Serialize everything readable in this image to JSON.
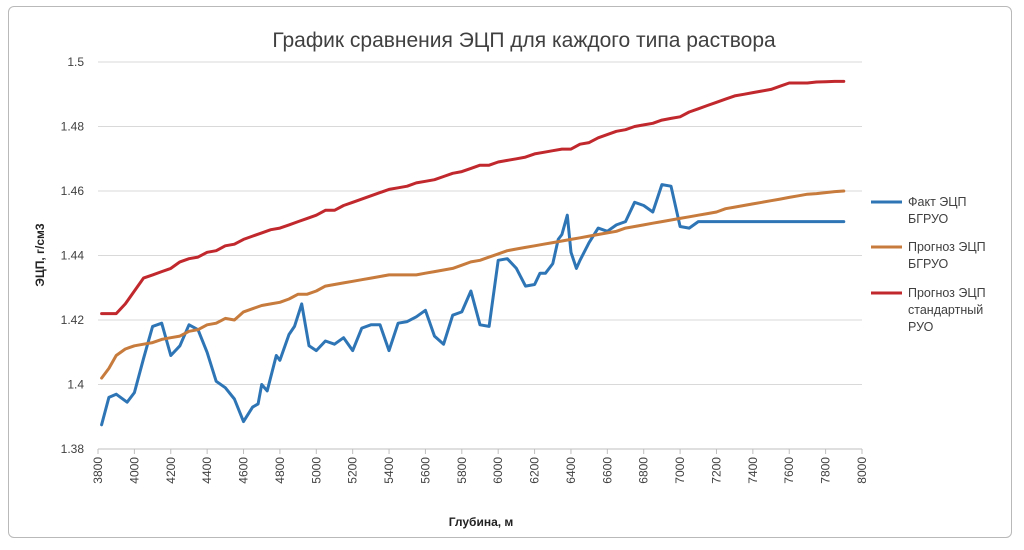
{
  "chart_data": {
    "type": "line",
    "title": "График сравнения ЭЦП для каждого типа раствора",
    "xlabel": "Глубина, м",
    "ylabel": "ЭЦП, г/см3",
    "xlim": [
      3800,
      8000
    ],
    "ylim": [
      1.38,
      1.5
    ],
    "x_ticks": [
      "3800",
      "4000",
      "4200",
      "4400",
      "4600",
      "4800",
      "5000",
      "5200",
      "5400",
      "5600",
      "5800",
      "6000",
      "6200",
      "6400",
      "6600",
      "6800",
      "7000",
      "7200",
      "7400",
      "7600",
      "7800",
      "8000"
    ],
    "y_ticks": [
      "1.38",
      "1.4",
      "1.42",
      "1.44",
      "1.46",
      "1.48",
      "1.5"
    ],
    "grid": "horizontal",
    "legend_position": "right",
    "series": [
      {
        "name": "Факт ЭЦП БГРУО",
        "name_lines": [
          "Факт ЭЦП",
          "БГРУО"
        ],
        "color": "#2e75b6",
        "x": [
          3820,
          3860,
          3900,
          3960,
          4000,
          4050,
          4100,
          4150,
          4200,
          4250,
          4300,
          4350,
          4400,
          4450,
          4500,
          4550,
          4600,
          4650,
          4680,
          4700,
          4730,
          4780,
          4800,
          4850,
          4880,
          4920,
          4960,
          5000,
          5050,
          5100,
          5150,
          5200,
          5250,
          5300,
          5350,
          5400,
          5450,
          5500,
          5550,
          5600,
          5650,
          5700,
          5750,
          5800,
          5850,
          5900,
          5950,
          6000,
          6050,
          6100,
          6150,
          6200,
          6230,
          6260,
          6300,
          6330,
          6350,
          6380,
          6400,
          6430,
          6450,
          6500,
          6550,
          6600,
          6650,
          6700,
          6750,
          6800,
          6850,
          6900,
          6950,
          7000,
          7050,
          7100,
          7150,
          7200,
          7250,
          7300,
          7350,
          7400,
          7450,
          7500,
          7550,
          7600,
          7650,
          7700,
          7750,
          7800,
          7850,
          7900
        ],
        "values": [
          1.3875,
          1.396,
          1.397,
          1.3945,
          1.3975,
          1.408,
          1.418,
          1.419,
          1.409,
          1.412,
          1.4185,
          1.417,
          1.41,
          1.401,
          1.399,
          1.3955,
          1.3885,
          1.393,
          1.394,
          1.4,
          1.398,
          1.409,
          1.4075,
          1.4155,
          1.418,
          1.425,
          1.412,
          1.4105,
          1.4135,
          1.4125,
          1.4145,
          1.4105,
          1.4175,
          1.4185,
          1.4185,
          1.4105,
          1.419,
          1.4195,
          1.421,
          1.423,
          1.415,
          1.4125,
          1.4215,
          1.4225,
          1.429,
          1.4185,
          1.418,
          1.4385,
          1.439,
          1.436,
          1.4305,
          1.431,
          1.4345,
          1.4345,
          1.4375,
          1.445,
          1.4465,
          1.4525,
          1.441,
          1.436,
          1.4385,
          1.444,
          1.4485,
          1.4475,
          1.4495,
          1.4505,
          1.4565,
          1.4555,
          1.4535,
          1.462,
          1.4615,
          1.449,
          1.4485,
          1.4505,
          1.4505,
          1.4505,
          1.4505,
          1.4505,
          1.4505,
          1.4505,
          1.4505,
          1.4505,
          1.4505,
          1.4505,
          1.4505,
          1.4505,
          1.4505,
          1.4505,
          1.4505,
          1.4505
        ]
      },
      {
        "name": "Прогноз ЭЦП БГРУО",
        "name_lines": [
          "Прогноз ЭЦП",
          "БГРУО"
        ],
        "color": "#c77b3c",
        "x": [
          3820,
          3860,
          3900,
          3950,
          4000,
          4050,
          4100,
          4150,
          4200,
          4250,
          4300,
          4350,
          4400,
          4450,
          4500,
          4550,
          4600,
          4650,
          4700,
          4750,
          4800,
          4850,
          4900,
          4950,
          5000,
          5050,
          5100,
          5150,
          5200,
          5250,
          5300,
          5350,
          5400,
          5450,
          5500,
          5550,
          5600,
          5650,
          5700,
          5750,
          5800,
          5850,
          5900,
          5950,
          6000,
          6050,
          6100,
          6150,
          6200,
          6250,
          6300,
          6350,
          6400,
          6450,
          6500,
          6550,
          6600,
          6650,
          6700,
          6750,
          6800,
          6850,
          6900,
          6950,
          7000,
          7050,
          7100,
          7150,
          7200,
          7250,
          7300,
          7350,
          7400,
          7450,
          7500,
          7550,
          7600,
          7650,
          7700,
          7750,
          7800,
          7850,
          7900
        ],
        "values": [
          1.402,
          1.405,
          1.409,
          1.411,
          1.412,
          1.4125,
          1.413,
          1.414,
          1.4145,
          1.415,
          1.4165,
          1.417,
          1.4185,
          1.419,
          1.4205,
          1.42,
          1.4225,
          1.4235,
          1.4245,
          1.425,
          1.4255,
          1.4265,
          1.428,
          1.428,
          1.429,
          1.4305,
          1.431,
          1.4315,
          1.432,
          1.4325,
          1.433,
          1.4335,
          1.434,
          1.434,
          1.434,
          1.434,
          1.4345,
          1.435,
          1.4355,
          1.436,
          1.437,
          1.438,
          1.4385,
          1.4395,
          1.4405,
          1.4415,
          1.442,
          1.4425,
          1.443,
          1.4435,
          1.444,
          1.4445,
          1.445,
          1.4455,
          1.446,
          1.4465,
          1.447,
          1.4475,
          1.4485,
          1.449,
          1.4495,
          1.45,
          1.4505,
          1.451,
          1.4515,
          1.452,
          1.4525,
          1.453,
          1.4535,
          1.4545,
          1.455,
          1.4555,
          1.456,
          1.4565,
          1.457,
          1.4575,
          1.458,
          1.4585,
          1.459,
          1.4592,
          1.4595,
          1.4598,
          1.46
        ]
      },
      {
        "name": "Прогноз ЭЦП стандартный РУО",
        "name_lines": [
          "Прогноз ЭЦП",
          "стандартный",
          "РУО"
        ],
        "color": "#c0282d",
        "x": [
          3820,
          3860,
          3900,
          3950,
          4000,
          4050,
          4100,
          4150,
          4200,
          4250,
          4300,
          4350,
          4400,
          4450,
          4500,
          4550,
          4600,
          4650,
          4700,
          4750,
          4800,
          4850,
          4900,
          4950,
          5000,
          5050,
          5100,
          5150,
          5200,
          5250,
          5300,
          5350,
          5400,
          5450,
          5500,
          5550,
          5600,
          5650,
          5700,
          5750,
          5800,
          5850,
          5900,
          5950,
          6000,
          6050,
          6100,
          6150,
          6200,
          6250,
          6300,
          6350,
          6400,
          6450,
          6500,
          6550,
          6600,
          6650,
          6700,
          6750,
          6800,
          6850,
          6900,
          6950,
          7000,
          7050,
          7100,
          7150,
          7200,
          7250,
          7300,
          7350,
          7400,
          7450,
          7500,
          7550,
          7600,
          7650,
          7700,
          7750,
          7800,
          7850,
          7900
        ],
        "values": [
          1.422,
          1.422,
          1.422,
          1.425,
          1.429,
          1.433,
          1.434,
          1.435,
          1.436,
          1.438,
          1.439,
          1.4395,
          1.441,
          1.4415,
          1.443,
          1.4435,
          1.445,
          1.446,
          1.447,
          1.448,
          1.4485,
          1.4495,
          1.4505,
          1.4515,
          1.4525,
          1.454,
          1.454,
          1.4555,
          1.4565,
          1.4575,
          1.4585,
          1.4595,
          1.4605,
          1.461,
          1.4615,
          1.4625,
          1.463,
          1.4635,
          1.4645,
          1.4655,
          1.466,
          1.467,
          1.468,
          1.468,
          1.469,
          1.4695,
          1.47,
          1.4705,
          1.4715,
          1.472,
          1.4725,
          1.473,
          1.473,
          1.4745,
          1.475,
          1.4765,
          1.4775,
          1.4785,
          1.479,
          1.48,
          1.4805,
          1.481,
          1.482,
          1.4825,
          1.483,
          1.4845,
          1.4855,
          1.4865,
          1.4875,
          1.4885,
          1.4895,
          1.49,
          1.4905,
          1.491,
          1.4915,
          1.4925,
          1.4935,
          1.4935,
          1.4935,
          1.4938,
          1.4939,
          1.494,
          1.494
        ]
      }
    ]
  }
}
